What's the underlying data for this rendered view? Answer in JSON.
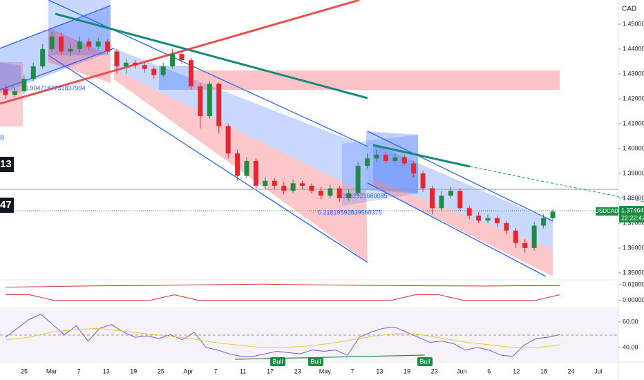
{
  "chart_data": {
    "type": "candlestick",
    "symbol": "USDCAD",
    "currency": "CAD",
    "last_price_label": "1.37464",
    "countdown": "22:22:42",
    "left_labels": [
      "13",
      "47",
      "8"
    ],
    "fib_labels": [
      "0.9047187731837994",
      "1.3782921680085",
      "0.21819592839568375"
    ],
    "signal_labels": [
      "Bull",
      "Bull",
      "Bull"
    ],
    "x_labels": [
      "25",
      "Mar",
      "7",
      "13",
      "19",
      "25",
      "Apr",
      "7",
      "11",
      "17",
      "23",
      "May",
      "7",
      "13",
      "19",
      "23",
      "Jun",
      "6",
      "12",
      "18",
      "24",
      "Jul"
    ],
    "ylim": [
      1.3472,
      1.4597
    ],
    "yticks": [
      {
        "value": 1.45,
        "label": "1.45000"
      },
      {
        "value": 1.44,
        "label": "1.44000"
      },
      {
        "value": 1.43,
        "label": "1.43000"
      },
      {
        "value": 1.42,
        "label": "1.42000"
      },
      {
        "value": 1.41,
        "label": "1.41000"
      },
      {
        "value": 1.4,
        "label": "1.40000"
      },
      {
        "value": 1.39,
        "label": "1.39000"
      },
      {
        "value": 1.38,
        "label": "1.38000"
      },
      {
        "value": 1.37,
        "label": "1.37000"
      },
      {
        "value": 1.36,
        "label": "1.36000"
      },
      {
        "value": 1.35,
        "label": "1.35000"
      }
    ],
    "up_color": "#1e8c45",
    "down_color": "#e8262f",
    "open": [
      1.424,
      1.4215,
      1.423,
      1.428,
      1.433,
      1.44,
      1.445,
      1.439,
      1.44,
      1.443,
      1.441,
      1.443,
      1.439,
      1.433,
      1.4345,
      1.4335,
      1.432,
      1.4295,
      1.433,
      1.438,
      1.4355,
      1.425,
      1.413,
      1.426,
      1.409,
      1.398,
      1.389,
      1.395,
      1.385,
      1.387,
      1.385,
      1.383,
      1.386,
      1.385,
      1.383,
      1.381,
      1.384,
      1.38,
      1.382,
      1.393,
      1.396,
      1.3975,
      1.395,
      1.3965,
      1.394,
      1.39,
      1.384,
      1.376,
      1.381,
      1.383,
      1.376,
      1.373,
      1.371,
      1.372,
      1.37,
      1.367,
      1.362,
      1.36,
      1.369,
      1.372
    ],
    "high": [
      1.4255,
      1.4245,
      1.4295,
      1.4345,
      1.442,
      1.447,
      1.4465,
      1.442,
      1.445,
      1.4445,
      1.4445,
      1.444,
      1.44,
      1.436,
      1.4355,
      1.4345,
      1.433,
      1.4345,
      1.44,
      1.4395,
      1.4365,
      1.426,
      1.427,
      1.4265,
      1.41,
      1.3995,
      1.3965,
      1.396,
      1.3885,
      1.388,
      1.3865,
      1.3875,
      1.387,
      1.386,
      1.3845,
      1.3855,
      1.385,
      1.3835,
      1.3945,
      1.398,
      1.3995,
      1.3985,
      1.398,
      1.3975,
      1.395,
      1.391,
      1.385,
      1.383,
      1.3845,
      1.384,
      1.377,
      1.3745,
      1.3735,
      1.373,
      1.371,
      1.368,
      1.3635,
      1.3705,
      1.3735,
      1.3755
    ],
    "low": [
      1.42,
      1.4205,
      1.422,
      1.427,
      1.432,
      1.439,
      1.4375,
      1.437,
      1.4385,
      1.4395,
      1.44,
      1.438,
      1.43,
      1.43,
      1.432,
      1.4305,
      1.428,
      1.4285,
      1.432,
      1.434,
      1.4235,
      1.408,
      1.412,
      1.406,
      1.396,
      1.387,
      1.388,
      1.384,
      1.3835,
      1.3835,
      1.3815,
      1.382,
      1.3835,
      1.382,
      1.3795,
      1.38,
      1.3785,
      1.379,
      1.381,
      1.392,
      1.3945,
      1.394,
      1.394,
      1.393,
      1.3885,
      1.3825,
      1.3735,
      1.375,
      1.38,
      1.375,
      1.3715,
      1.37,
      1.37,
      1.3685,
      1.3655,
      1.36,
      1.358,
      1.359,
      1.368,
      1.371
    ],
    "close": [
      1.4215,
      1.423,
      1.428,
      1.433,
      1.44,
      1.445,
      1.439,
      1.44,
      1.443,
      1.441,
      1.443,
      1.439,
      1.433,
      1.4345,
      1.4335,
      1.432,
      1.4295,
      1.433,
      1.438,
      1.4355,
      1.425,
      1.413,
      1.426,
      1.409,
      1.398,
      1.389,
      1.395,
      1.385,
      1.387,
      1.385,
      1.383,
      1.386,
      1.385,
      1.383,
      1.381,
      1.384,
      1.38,
      1.382,
      1.393,
      1.396,
      1.3975,
      1.395,
      1.3965,
      1.394,
      1.39,
      1.384,
      1.376,
      1.381,
      1.383,
      1.376,
      1.373,
      1.371,
      1.372,
      1.37,
      1.367,
      1.362,
      1.36,
      1.369,
      1.372,
      1.37464
    ],
    "osc": {
      "ylim": [
        -0.005,
        0.0132
      ],
      "yticks": [
        {
          "value": 0.01,
          "label": "0.01000"
        },
        {
          "value": 0,
          "label": "0.00000"
        }
      ],
      "series": [
        {
          "color": "#c0392b",
          "values": [
            0.0085,
            0.0088,
            0.0092,
            0.0094,
            0.0096,
            0.0099,
            0.0102,
            0.0104,
            0.0101,
            0.0098,
            0.0096,
            0.0094,
            0.0093,
            0.0092,
            0.0094,
            0.0095
          ]
        },
        {
          "color": "#e8262f",
          "values": [
            0.0036,
            0.0036,
            0,
            0,
            0,
            0,
            0,
            0.0036,
            0,
            0,
            0,
            0,
            0,
            0,
            0,
            0,
            0,
            0.0036,
            0.0036,
            0,
            0,
            0,
            0,
            0.0036
          ]
        }
      ]
    },
    "rsi": {
      "ylim": [
        29.7,
        69.7
      ],
      "yticks": [
        {
          "value": 60,
          "label": "60.00"
        },
        {
          "value": 40,
          "label": "40.00"
        }
      ],
      "series": [
        {
          "color": "#7e57c2",
          "values": [
            48,
            55,
            62,
            66,
            58,
            50,
            57,
            45,
            55,
            58,
            52,
            48,
            49,
            47,
            50,
            46,
            52,
            40,
            38,
            35,
            33,
            33,
            35,
            37,
            36,
            35,
            38,
            37,
            38,
            34,
            48,
            52,
            55,
            56,
            52,
            48,
            44,
            45,
            43,
            38,
            40,
            38,
            34,
            33,
            42,
            47,
            48,
            50
          ]
        },
        {
          "color": "#f5c542",
          "values": [
            46,
            48,
            52,
            54,
            55,
            53,
            51,
            49,
            47,
            44,
            42,
            40,
            40,
            41,
            43,
            46,
            49,
            51,
            50,
            47,
            44,
            42,
            40,
            40,
            42
          ]
        }
      ]
    }
  }
}
